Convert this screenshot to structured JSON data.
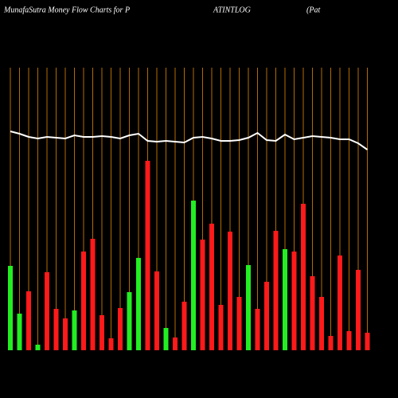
{
  "chart_data": {
    "type": "bar",
    "title_parts": [
      "MunafaSutra  Money Flow  Charts for P",
      "ATINTLOG",
      "(Pat"
    ],
    "categories": [
      null,
      null,
      null,
      null,
      null,
      null,
      null,
      null,
      null,
      null,
      null,
      null,
      null,
      null,
      null,
      null,
      null,
      null,
      null,
      null,
      null,
      null,
      null,
      null,
      null,
      null,
      null,
      null,
      null,
      null,
      null,
      null,
      null,
      null,
      null,
      null,
      null,
      null,
      null,
      null
    ],
    "ylim": [
      0,
      360
    ],
    "grid_color": "#b36b00",
    "series": [
      {
        "type": "bar",
        "values": [
          106,
          46,
          74,
          7,
          98,
          52,
          40,
          50,
          124,
          140,
          44,
          15,
          53,
          73,
          116,
          238,
          99,
          28,
          16,
          61,
          188,
          139,
          159,
          57,
          149,
          67,
          107,
          52,
          86,
          150,
          127,
          124,
          184,
          93,
          67,
          18,
          119,
          24,
          101,
          22
        ],
        "colors": [
          "#22ee22",
          "#22ee22",
          "#ff1a1a",
          "#22ee22",
          "#ff1a1a",
          "#ff1a1a",
          "#ff1a1a",
          "#22ee22",
          "#ff1a1a",
          "#ff1a1a",
          "#ff1a1a",
          "#ff1a1a",
          "#ff1a1a",
          "#22ee22",
          "#22ee22",
          "#ff1a1a",
          "#ff1a1a",
          "#22ee22",
          "#ff1a1a",
          "#ff1a1a",
          "#22ee22",
          "#ff1a1a",
          "#ff1a1a",
          "#ff1a1a",
          "#ff1a1a",
          "#ff1a1a",
          "#22ee22",
          "#ff1a1a",
          "#ff1a1a",
          "#ff1a1a",
          "#22ee22",
          "#ff1a1a",
          "#ff1a1a",
          "#ff1a1a",
          "#ff1a1a",
          "#ff1a1a",
          "#ff1a1a",
          "#ff1a1a",
          "#ff1a1a",
          "#ff1a1a"
        ]
      },
      {
        "type": "line",
        "color": "#ffffff",
        "values": [
          275,
          272,
          268,
          266,
          268,
          267,
          266,
          270,
          268,
          268,
          269,
          268,
          266,
          270,
          272,
          263,
          262,
          263,
          262,
          261,
          267,
          268,
          266,
          263,
          263,
          264,
          267,
          273,
          264,
          263,
          271,
          265,
          267,
          269,
          268,
          267,
          265,
          265,
          260,
          252
        ]
      }
    ]
  }
}
